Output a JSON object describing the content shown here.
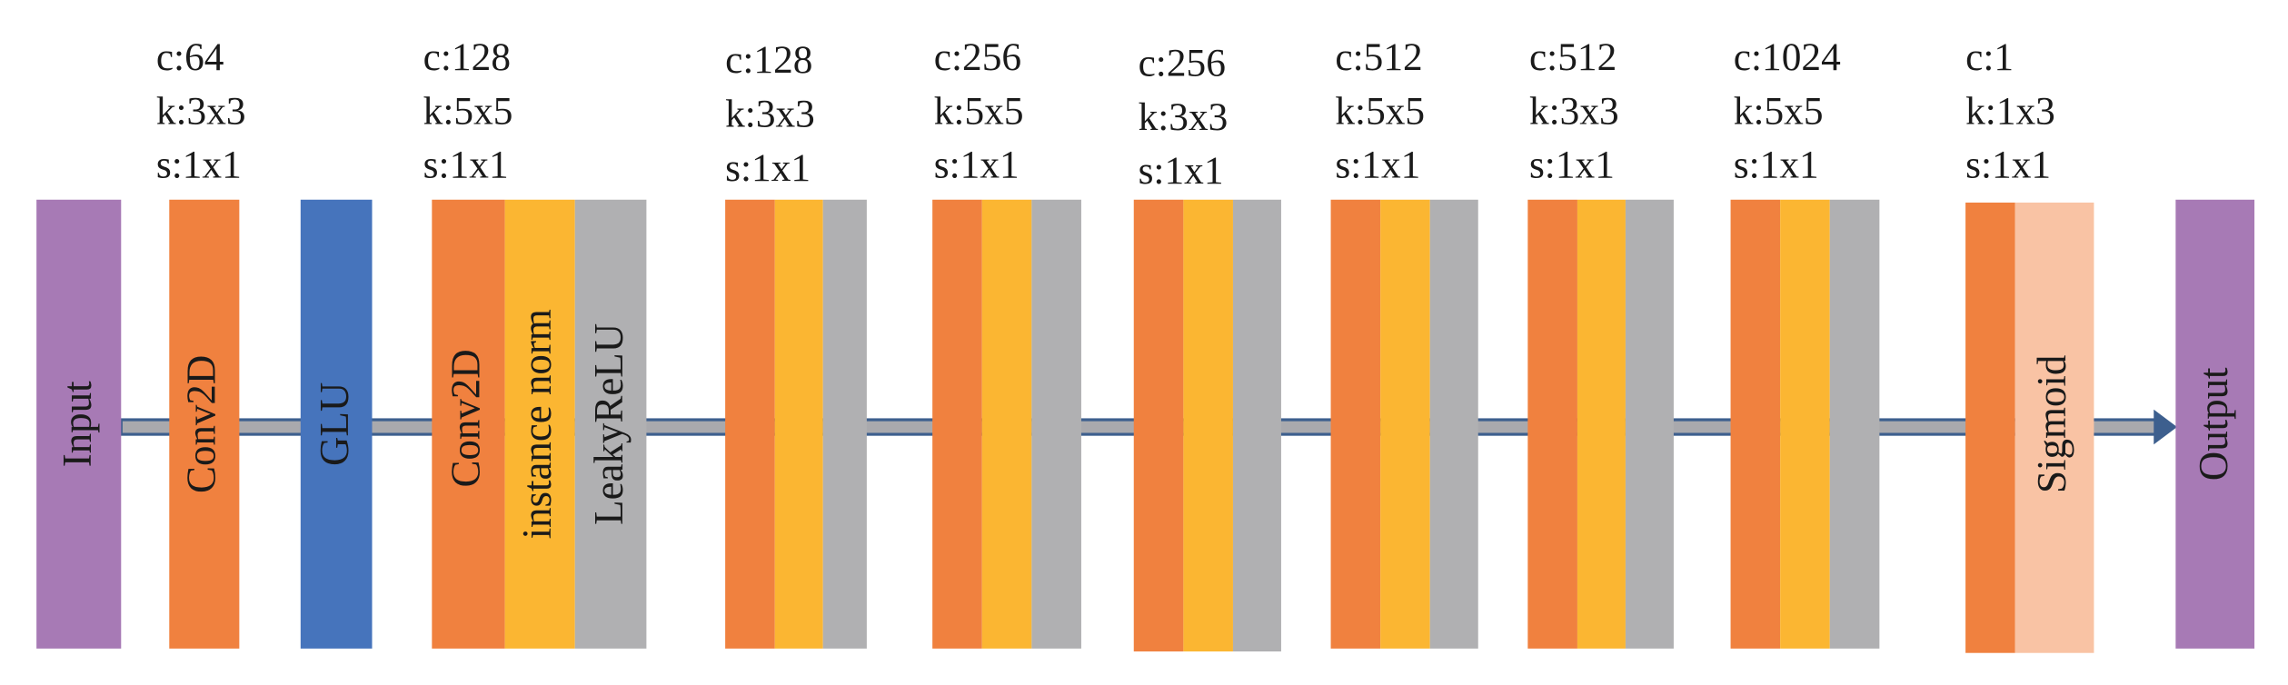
{
  "nodes": [
    {
      "label": "Input"
    },
    {
      "label": "Conv2D"
    },
    {
      "label": "GLU"
    },
    {
      "label": "Conv2D"
    },
    {
      "label": "instance norm"
    },
    {
      "label": "LeakyReLU"
    },
    {
      "label": "Sigmoid"
    },
    {
      "label": "Output"
    }
  ],
  "annotations": [
    {
      "c": "c:64",
      "k": "k:3x3",
      "s": "s:1x1"
    },
    {
      "c": "c:128",
      "k": "k:5x5",
      "s": "s:1x1"
    },
    {
      "c": "c:128",
      "k": "k:3x3",
      "s": "s:1x1"
    },
    {
      "c": "c:256",
      "k": "k:5x5",
      "s": "s:1x1"
    },
    {
      "c": "c:256",
      "k": "k:3x3",
      "s": "s:1x1"
    },
    {
      "c": "c:512",
      "k": "k:5x5",
      "s": "s:1x1"
    },
    {
      "c": "c:512",
      "k": "k:3x3",
      "s": "s:1x1"
    },
    {
      "c": "c:1024",
      "k": "k:5x5",
      "s": "s:1x1"
    },
    {
      "c": "c:1",
      "k": "k:1x3",
      "s": "s:1x1"
    }
  ]
}
